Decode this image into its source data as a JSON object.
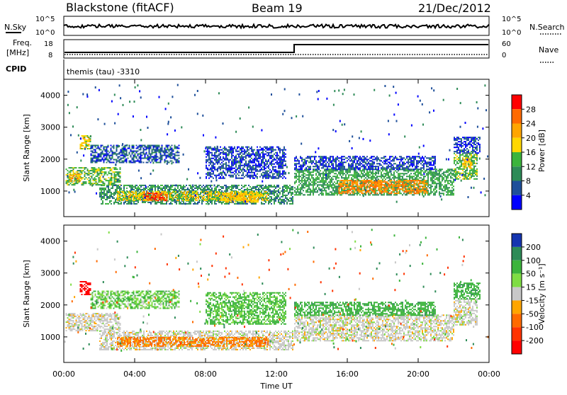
{
  "header": {
    "station": "Blackstone (fitACF)",
    "beam": "Beam 19",
    "date": "21/Dec/2012"
  },
  "top_panels": {
    "nsky": {
      "label": "N.Sky",
      "tick_top": "10^5",
      "tick_bottom": "10^0"
    },
    "nsearch": {
      "label": "N.Search",
      "tick_top": "10^5",
      "tick_bottom": "10^0"
    },
    "freq": {
      "label_line1": "Freq.",
      "label_line2": "[MHz]",
      "tick_top": "18",
      "tick_bottom": "8"
    },
    "nave": {
      "label": "Nave",
      "tick_top": "60",
      "tick_bottom": "0"
    },
    "cpid": {
      "label": "CPID",
      "program": "themis (tau) -3310"
    }
  },
  "x_axis": {
    "label": "Time UT",
    "ticks": [
      "00:00",
      "04:00",
      "08:00",
      "12:00",
      "16:00",
      "20:00",
      "00:00"
    ]
  },
  "power_colorbar": {
    "label": "Power [dB]",
    "ticks": [
      "28",
      "24",
      "20",
      "16",
      "12",
      "8",
      "4"
    ],
    "colors": [
      "#ff0000",
      "#ff6a00",
      "#ffa500",
      "#ffd700",
      "#3cb43c",
      "#2e8b57",
      "#1e4f9a",
      "#0000ff"
    ]
  },
  "velocity_colorbar": {
    "label": "Velocity [m s⁻¹]",
    "ticks": [
      "200",
      "100",
      "50",
      "15",
      "-15",
      "-50",
      "-100",
      "-200"
    ],
    "colors": [
      "#1535b0",
      "#2e8b57",
      "#3cb43c",
      "#7fdd44",
      "#c8c8c8",
      "#ffa500",
      "#ff6a00",
      "#ff3300",
      "#ff0000"
    ]
  },
  "chart_data": [
    {
      "type": "heatmap",
      "panel": "power",
      "ylabel": "Slant Range [km]",
      "xlabel": "Time UT",
      "xlim": [
        0,
        24
      ],
      "ylim": [
        200,
        4500
      ],
      "yticks": [
        1000,
        2000,
        3000,
        4000
      ],
      "colorbar_label": "Power [dB]",
      "colorbar_ticks": [
        4,
        8,
        12,
        16,
        20,
        24,
        28
      ],
      "clim": [
        0,
        32
      ],
      "regions": [
        {
          "t0": 0.1,
          "t1": 3.2,
          "r0": 1200,
          "r1": 1750,
          "value": 14
        },
        {
          "t0": 0.3,
          "t1": 1.0,
          "r0": 1300,
          "r1": 1550,
          "value": 22
        },
        {
          "t0": 0.9,
          "t1": 1.5,
          "r0": 2350,
          "r1": 2750,
          "value": 18
        },
        {
          "t0": 1.5,
          "t1": 6.5,
          "r0": 1900,
          "r1": 2450,
          "value": 6
        },
        {
          "t0": 2.0,
          "t1": 12.9,
          "r0": 600,
          "r1": 1200,
          "value": 10
        },
        {
          "t0": 3.0,
          "t1": 11.5,
          "r0": 700,
          "r1": 1000,
          "value": 18
        },
        {
          "t0": 4.5,
          "t1": 5.8,
          "r0": 700,
          "r1": 950,
          "value": 28
        },
        {
          "t0": 9.0,
          "t1": 11.0,
          "r0": 650,
          "r1": 950,
          "value": 20
        },
        {
          "t0": 8.0,
          "t1": 12.5,
          "r0": 1400,
          "r1": 2400,
          "value": 5
        },
        {
          "t0": 13.0,
          "t1": 22.0,
          "r0": 900,
          "r1": 1700,
          "value": 12
        },
        {
          "t0": 15.5,
          "t1": 20.5,
          "r0": 950,
          "r1": 1350,
          "value": 24
        },
        {
          "t0": 13.0,
          "t1": 21.0,
          "r0": 1700,
          "r1": 2100,
          "value": 5
        },
        {
          "t0": 22.0,
          "t1": 23.3,
          "r0": 1400,
          "r1": 2200,
          "value": 14
        },
        {
          "t0": 22.5,
          "t1": 23.0,
          "r0": 1700,
          "r1": 2050,
          "value": 20
        },
        {
          "t0": 22.0,
          "t1": 23.5,
          "r0": 2200,
          "r1": 2700,
          "value": 5
        }
      ]
    },
    {
      "type": "heatmap",
      "panel": "velocity",
      "ylabel": "Slant Range [km]",
      "xlabel": "Time UT",
      "xlim": [
        0,
        24
      ],
      "ylim": [
        200,
        4500
      ],
      "yticks": [
        1000,
        2000,
        3000,
        4000
      ],
      "colorbar_label": "Velocity [m s⁻¹]",
      "colorbar_ticks": [
        -200,
        -100,
        -50,
        -15,
        15,
        50,
        100,
        200
      ],
      "clim": [
        -250,
        250
      ],
      "regions": [
        {
          "t0": 0.1,
          "t1": 3.2,
          "r0": 1200,
          "r1": 1750,
          "value": 0
        },
        {
          "t0": 0.9,
          "t1": 1.5,
          "r0": 2350,
          "r1": 2750,
          "value": -180
        },
        {
          "t0": 1.5,
          "t1": 6.5,
          "r0": 1900,
          "r1": 2450,
          "value": 30
        },
        {
          "t0": 2.0,
          "t1": 12.9,
          "r0": 600,
          "r1": 1200,
          "value": 0
        },
        {
          "t0": 3.0,
          "t1": 11.5,
          "r0": 700,
          "r1": 1000,
          "value": -40
        },
        {
          "t0": 8.0,
          "t1": 12.5,
          "r0": 1400,
          "r1": 2400,
          "value": 40
        },
        {
          "t0": 13.0,
          "t1": 22.0,
          "r0": 900,
          "r1": 1700,
          "value": 0
        },
        {
          "t0": 13.0,
          "t1": 21.0,
          "r0": 1700,
          "r1": 2100,
          "value": 60
        },
        {
          "t0": 22.0,
          "t1": 23.3,
          "r0": 1400,
          "r1": 2200,
          "value": 0
        },
        {
          "t0": 22.0,
          "t1": 23.5,
          "r0": 2200,
          "r1": 2700,
          "value": 60
        }
      ]
    }
  ]
}
